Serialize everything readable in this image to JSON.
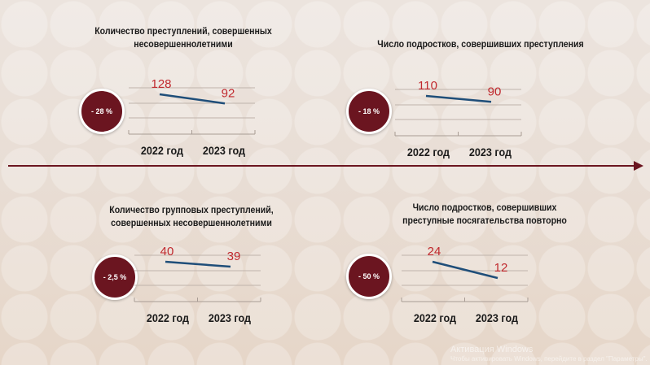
{
  "colors": {
    "circle": "#6b1520",
    "line": "#1f4e79",
    "value": "#c0282d",
    "arrow": "#6b1520"
  },
  "chart_data": [
    {
      "type": "line",
      "title": "Количество преступлений, совершенных несовершеннолетними",
      "categories": [
        "2022 год",
        "2023 год"
      ],
      "values": [
        128,
        92
      ],
      "value_labels": [
        "128",
        "92"
      ],
      "change": "- 28 %"
    },
    {
      "type": "line",
      "title": "Число подростков, совершивших преступления",
      "categories": [
        "2022 год",
        "2023 год"
      ],
      "values": [
        110,
        90
      ],
      "value_labels": [
        "110",
        "90"
      ],
      "change": "- 18 %"
    },
    {
      "type": "line",
      "title": "Количество групповых преступлений, совершенных несовершеннолетними",
      "categories": [
        "2022 год",
        "2023 год"
      ],
      "values": [
        40,
        39
      ],
      "value_labels": [
        "40",
        "39"
      ],
      "change": "- 2,5 %"
    },
    {
      "type": "line",
      "title": "Число подростков, совершивших преступные посягательства повторно",
      "categories": [
        "2022 год",
        "2023 год"
      ],
      "values": [
        24,
        12
      ],
      "value_labels": [
        "24",
        "12"
      ],
      "change": "- 50 %"
    }
  ],
  "watermark": {
    "line1": "Активация Windows",
    "line2": "Чтобы активировать Windows, перейдите в раздел \"Параметры\"."
  }
}
